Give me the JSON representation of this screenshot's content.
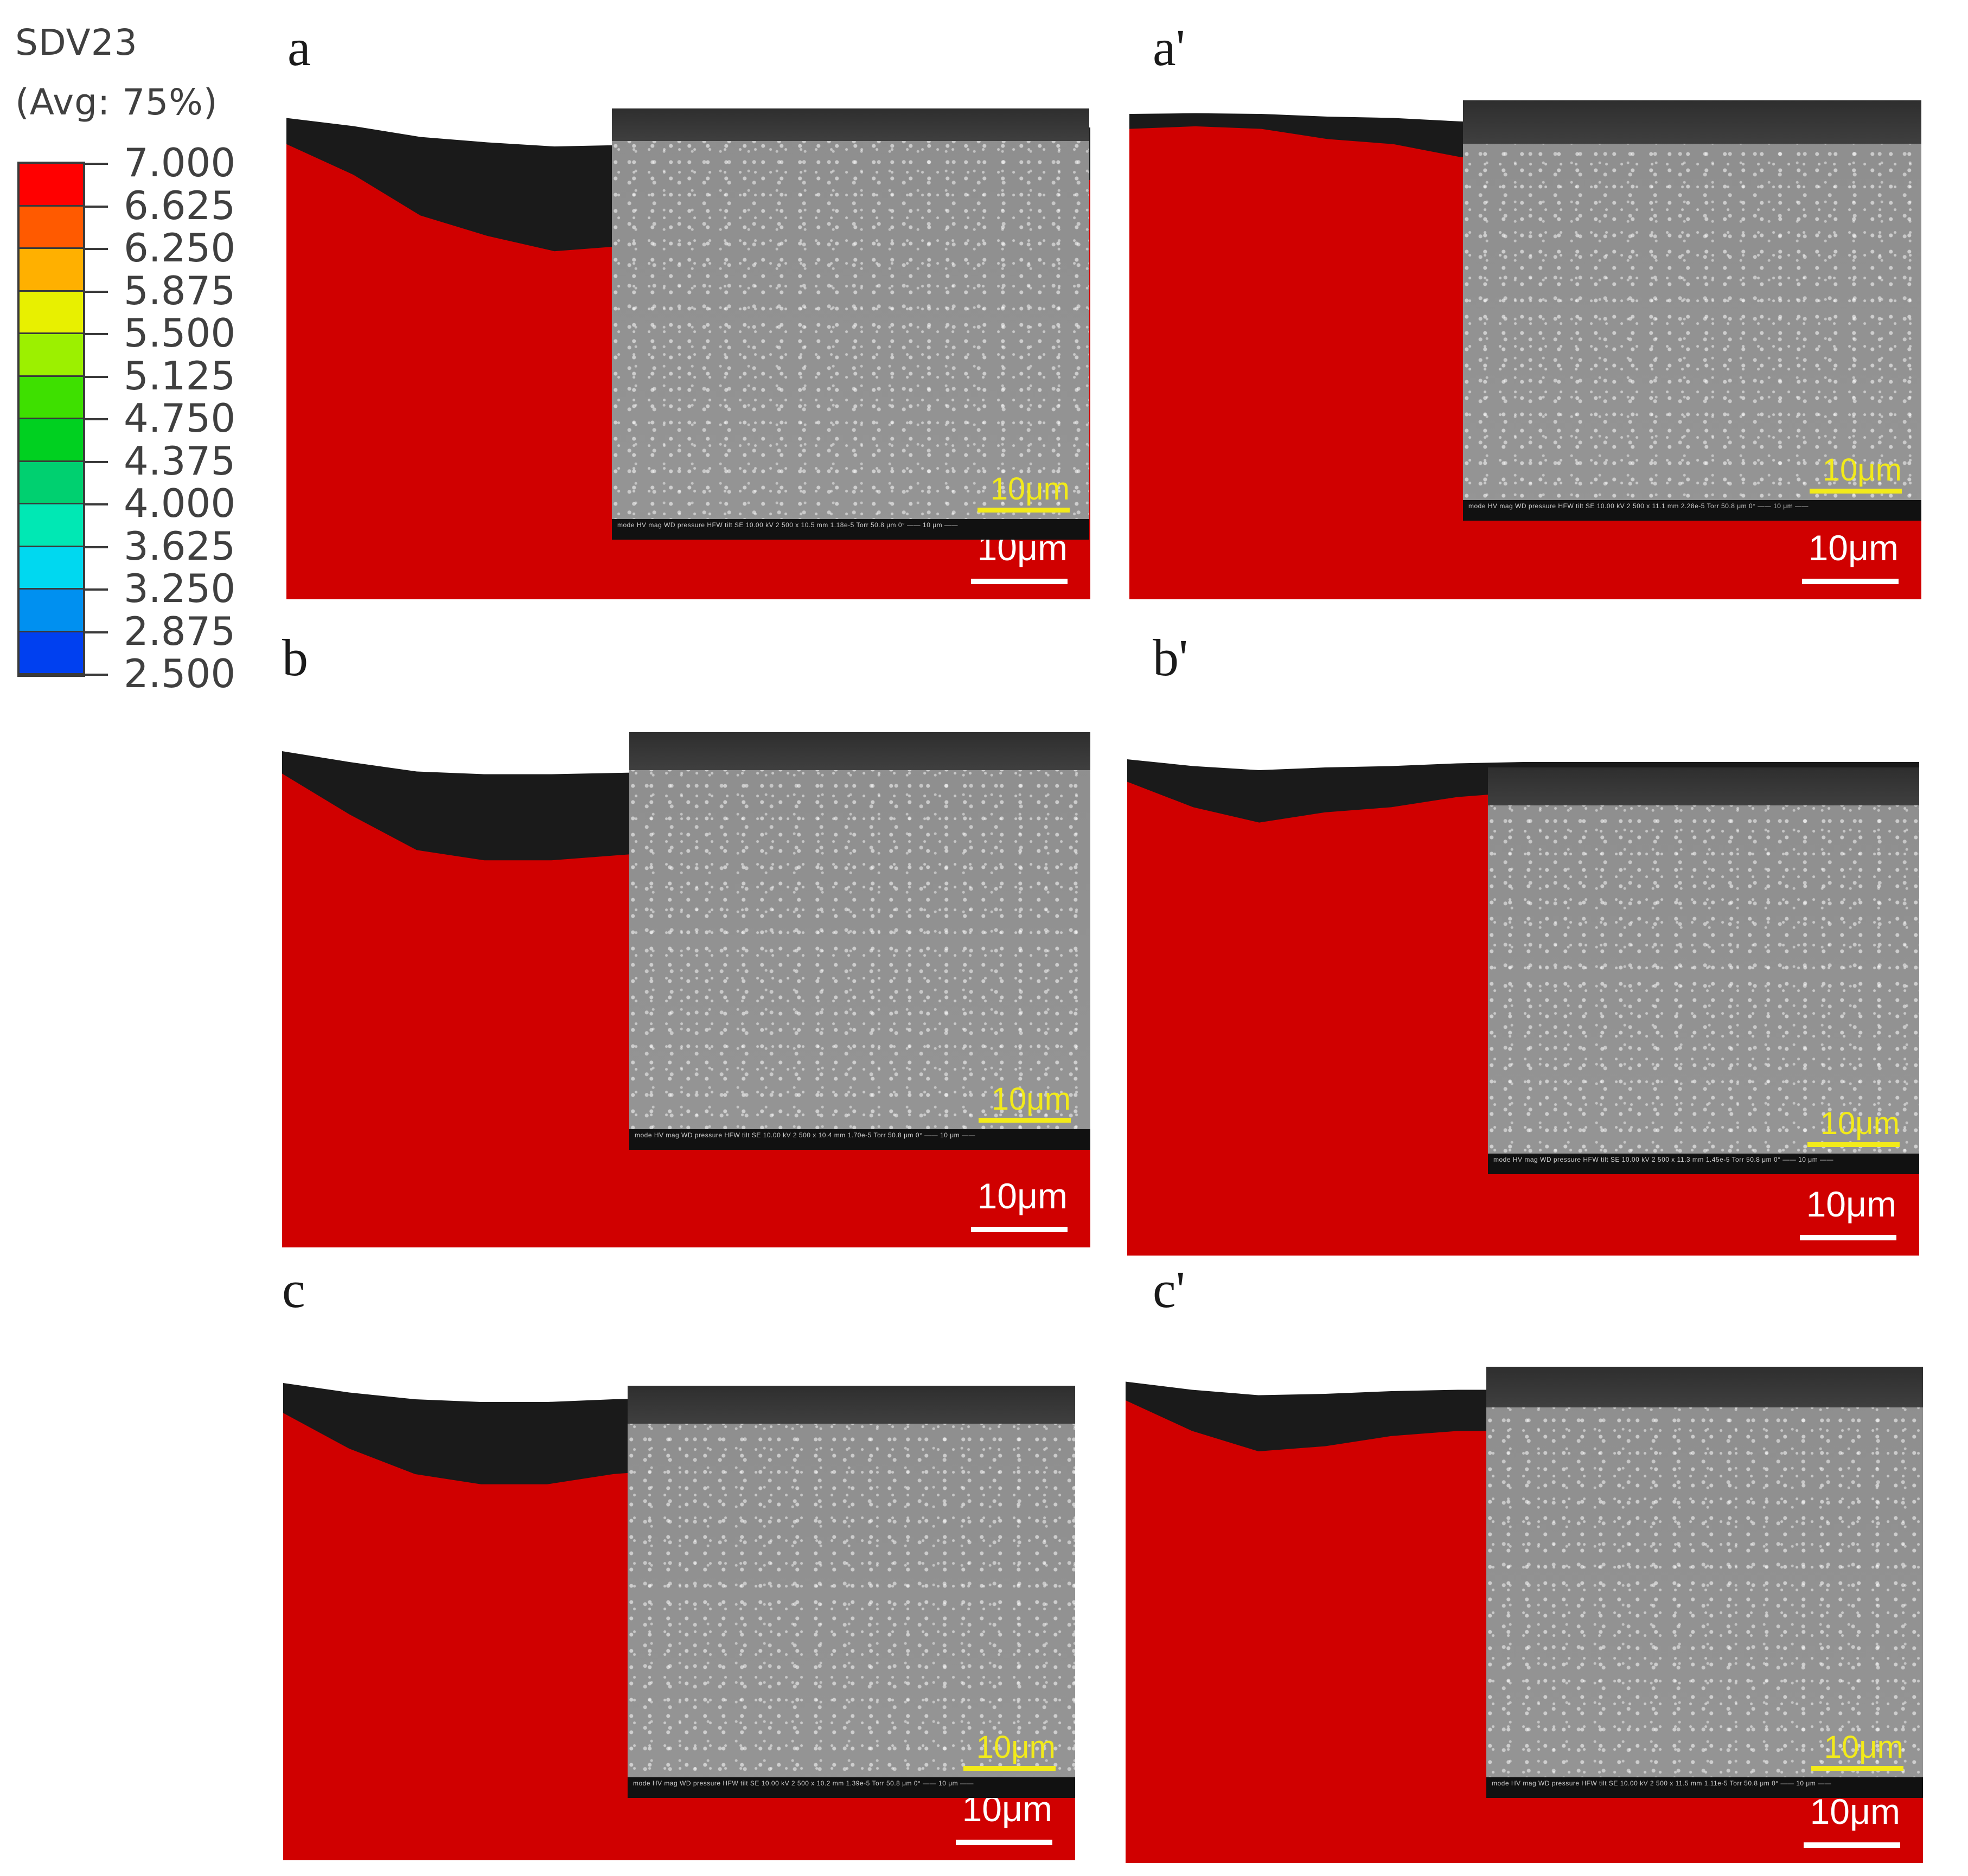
{
  "legend": {
    "title_line1": "SDV23",
    "title_line2": "(Avg: 75%)",
    "values": [
      "7.000",
      "6.625",
      "6.250",
      "5.875",
      "5.500",
      "5.125",
      "4.750",
      "4.375",
      "4.000",
      "3.625",
      "3.250",
      "2.875",
      "2.500"
    ],
    "colors": [
      "#ff0000",
      "#ff5a00",
      "#ffb000",
      "#e8f000",
      "#9cf000",
      "#3ee000",
      "#00d020",
      "#00d070",
      "#00e8b4",
      "#00d8f0",
      "#0090f0",
      "#0040f0",
      "#0000e0"
    ]
  },
  "panels": [
    {
      "label": "a",
      "sem_scale": "10μm",
      "sim_scale": "10μm",
      "sem_info": "mode  HV  mag  WD  pressure  HFW  tilt   SE 10.00 kV 2 500 x 10.5 mm 1.18e-5 Torr 50.8 μm 0°   —— 10 μm ——"
    },
    {
      "label": "a'",
      "sem_scale": "10μm",
      "sim_scale": "10μm",
      "sem_info": "mode  HV  mag  WD  pressure  HFW  tilt   SE 10.00 kV 2 500 x 11.1 mm 2.28e-5 Torr 50.8 μm 0°   —— 10 μm ——"
    },
    {
      "label": "b",
      "sem_scale": "10μm",
      "sim_scale": "10μm",
      "sem_info": "mode  HV  mag  WD  pressure  HFW  tilt   SE 10.00 kV 2 500 x 10.4 mm 1.70e-5 Torr 50.8 μm 0°   —— 10 μm ——"
    },
    {
      "label": "b'",
      "sem_scale": "10μm",
      "sim_scale": "10μm",
      "sem_info": "mode  HV  mag  WD  pressure  HFW  tilt   SE 10.00 kV 2 500 x 11.3 mm 1.45e-5 Torr 50.8 μm 0°   —— 10 μm ——"
    },
    {
      "label": "c",
      "sem_scale": "10μm",
      "sim_scale": "10μm",
      "sem_info": "mode  HV  mag  WD  pressure  HFW  tilt   SE 10.00 kV 2 500 x 10.2 mm 1.39e-5 Torr 50.8 μm 0°   —— 10 μm ——"
    },
    {
      "label": "c'",
      "sem_scale": "10μm",
      "sim_scale": "10μm",
      "sem_info": "mode  HV  mag  WD  pressure  HFW  tilt   SE 10.00 kV 2 500 x 11.5 mm 1.11e-5 Torr 50.8 μm 0°   —— 10 μm ——"
    }
  ]
}
